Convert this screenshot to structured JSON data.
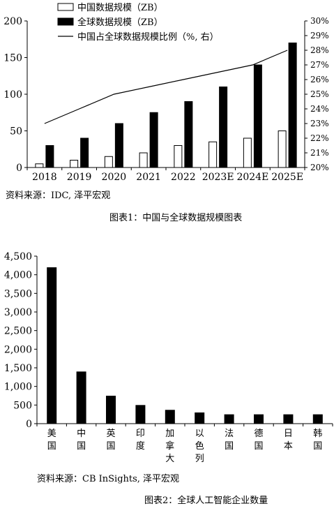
{
  "chart_data": [
    {
      "type": "bar",
      "categories": [
        "2018",
        "2019",
        "2020",
        "2021",
        "2022",
        "2023E",
        "2024E",
        "2025E"
      ],
      "series": [
        {
          "name": "中国数据规模（ZB）",
          "values": [
            5,
            10,
            15,
            20,
            30,
            35,
            40,
            50
          ],
          "color": "#ffffff"
        },
        {
          "name": "全球数据规模（ZB）",
          "values": [
            30,
            40,
            60,
            75,
            90,
            110,
            140,
            170
          ],
          "color": "#000000"
        },
        {
          "name": "中国占全球数据规模比例（%, 右）",
          "type": "line",
          "axis": "right",
          "values": [
            23.0,
            24.0,
            25.0,
            25.5,
            26.0,
            26.5,
            27.0,
            28.0
          ],
          "color": "#000000"
        }
      ],
      "ylim": [
        0,
        200
      ],
      "yticks": [
        "0",
        "50",
        "100",
        "150",
        "200"
      ],
      "y2lim": [
        20,
        30
      ],
      "y2ticks": [
        "20%",
        "21%",
        "22%",
        "23%",
        "24%",
        "25%",
        "26%",
        "27%",
        "28%",
        "29%",
        "30%"
      ],
      "legend": "top-left",
      "grid": false,
      "source": "资料来源：IDC, 泽平宏观",
      "caption": "图表1：中国与全球数据规模图表"
    },
    {
      "type": "bar",
      "categories": [
        "美国",
        "中国",
        "英国",
        "印度",
        "加拿大",
        "以色列",
        "法国",
        "德国",
        "日本",
        "韩国"
      ],
      "values": [
        4200,
        1400,
        750,
        500,
        370,
        300,
        250,
        250,
        250,
        250
      ],
      "color": "#000000",
      "ylim": [
        0,
        4500
      ],
      "yticks": [
        "0",
        "500",
        "1,000",
        "1,500",
        "2,000",
        "2,500",
        "3,000",
        "3,500",
        "4,000",
        "4,500"
      ],
      "grid": false,
      "source": "资料来源：CB InSights, 泽平宏观",
      "caption": "图表2：全球人工智能企业数量"
    }
  ]
}
